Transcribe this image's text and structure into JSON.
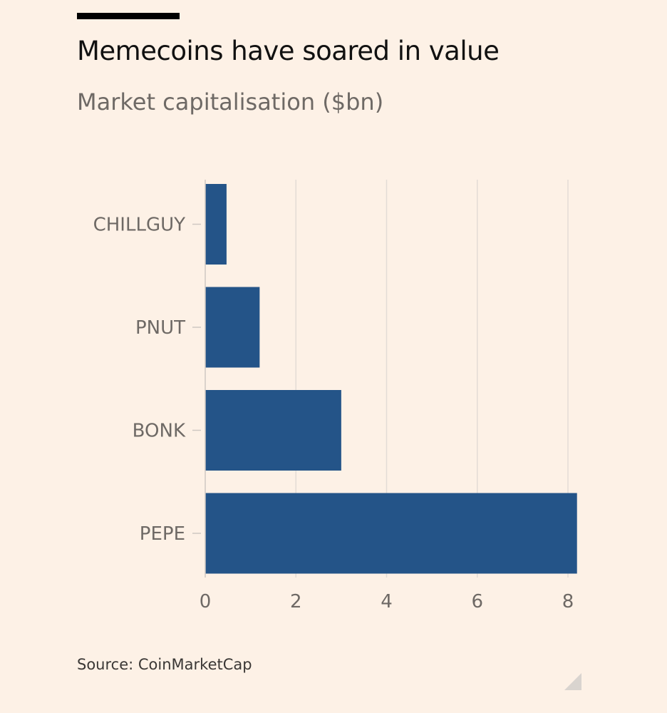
{
  "chart_data": {
    "type": "bar",
    "orientation": "horizontal",
    "title": "Memecoins have soared in value",
    "subtitle": "Market capitalisation ($bn)",
    "categories": [
      "CHILLGUY",
      "PNUT",
      "BONK",
      "PEPE"
    ],
    "values": [
      0.47,
      1.2,
      3.0,
      8.2
    ],
    "xlim": [
      0,
      8.2
    ],
    "xticks": [
      0,
      2,
      4,
      6,
      8
    ],
    "grid": true,
    "legend": "none",
    "bar_color": "#245488",
    "gridline_color": "#E3DCD5",
    "axis_color": "#CFC8C2",
    "tick_label_color": "#6E6965"
  },
  "footer": {
    "source": "Source: CoinMarketCap"
  }
}
